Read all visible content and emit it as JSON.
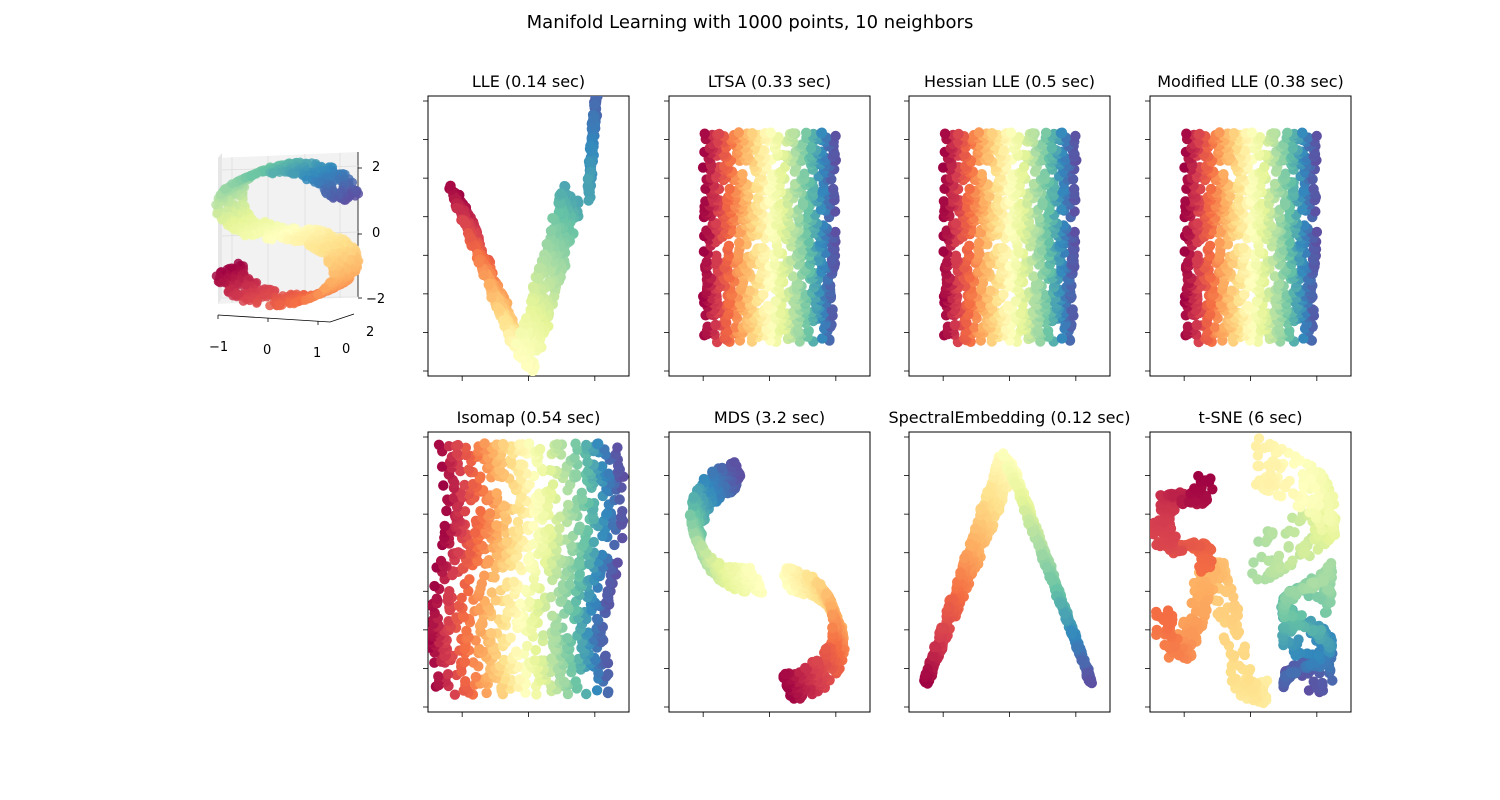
{
  "figure": {
    "title": "Manifold Learning with 1000 points, 10 neighbors"
  },
  "colormap": {
    "name": "Spectral",
    "stops": [
      "#9e0142",
      "#d53e4f",
      "#f46d43",
      "#fdae61",
      "#fee08b",
      "#ffffbf",
      "#e6f598",
      "#abdda4",
      "#66c2a5",
      "#3288bd",
      "#5e4fa2"
    ]
  },
  "chart_data": [
    {
      "id": "s-curve-3d",
      "type": "scatter",
      "title": "",
      "projection": "3d",
      "n_points": 1000,
      "x_ticks": [
        "−1",
        "0",
        "1"
      ],
      "y_ticks": [
        "0",
        "2"
      ],
      "z_ticks": [
        "2",
        "0",
        "−2"
      ],
      "xlim": [
        -1,
        1
      ],
      "ylim": [
        0,
        2
      ],
      "zlim": [
        -2,
        2
      ]
    },
    {
      "id": "lle",
      "type": "scatter",
      "title": "LLE (0.14 sec)",
      "method": "LLE",
      "time_sec": 0.14,
      "shape": "v",
      "tick_labels_shown": false
    },
    {
      "id": "ltsa",
      "type": "scatter",
      "title": "LTSA (0.33 sec)",
      "method": "LTSA",
      "time_sec": 0.33,
      "shape": "rectangle",
      "tick_labels_shown": false
    },
    {
      "id": "hessian-lle",
      "type": "scatter",
      "title": "Hessian LLE (0.5 sec)",
      "method": "Hessian LLE",
      "time_sec": 0.5,
      "shape": "rectangle",
      "tick_labels_shown": false
    },
    {
      "id": "modified-lle",
      "type": "scatter",
      "title": "Modified LLE (0.38 sec)",
      "method": "Modified LLE",
      "time_sec": 0.38,
      "shape": "rectangle",
      "tick_labels_shown": false
    },
    {
      "id": "isomap",
      "type": "scatter",
      "title": "Isomap (0.54 sec)",
      "method": "Isomap",
      "time_sec": 0.54,
      "shape": "wavy-rectangle",
      "tick_labels_shown": false
    },
    {
      "id": "mds",
      "type": "scatter",
      "title": "MDS (3.2 sec)",
      "method": "MDS",
      "time_sec": 3.2,
      "shape": "s-curve",
      "tick_labels_shown": false
    },
    {
      "id": "spectral",
      "type": "scatter",
      "title": "SpectralEmbedding (0.12 sec)",
      "method": "SpectralEmbedding",
      "time_sec": 0.12,
      "shape": "inverted-v",
      "tick_labels_shown": false
    },
    {
      "id": "tsne",
      "type": "scatter",
      "title": "t-SNE (6 sec)",
      "method": "t-SNE",
      "time_sec": 6,
      "shape": "clusters",
      "tick_labels_shown": false
    }
  ]
}
